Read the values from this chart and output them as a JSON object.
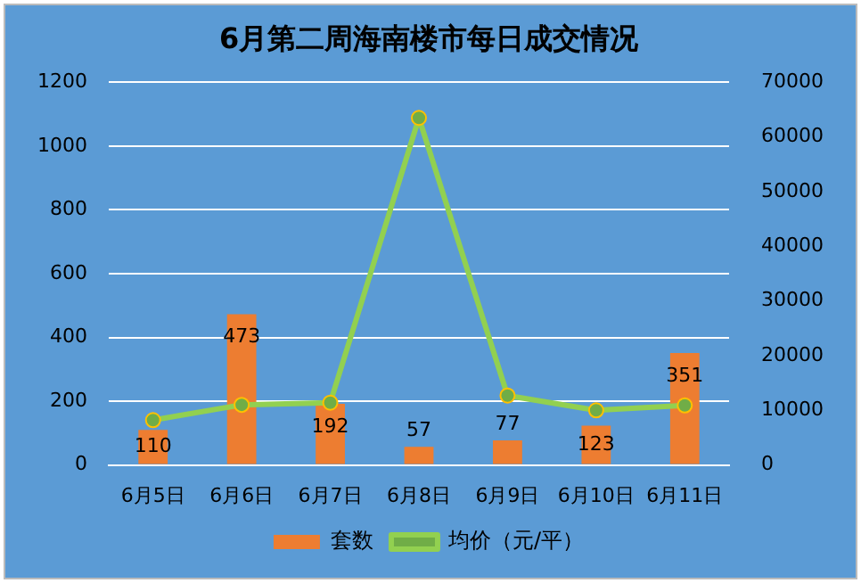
{
  "chart_data": {
    "type": "bar",
    "title": "6月第二周海南楼市每日成交情况",
    "categories": [
      "6月5日",
      "6月6日",
      "6月7日",
      "6月8日",
      "6月9日",
      "6月10日",
      "6月11日"
    ],
    "series": [
      {
        "name": "套数",
        "color": "#ed7d31",
        "values": [
          110,
          473,
          192,
          57,
          77,
          123,
          351
        ],
        "value_labels": [
          "110",
          "473",
          "192",
          "57",
          "77",
          "123",
          "351"
        ]
      },
      {
        "name": "均价（元/平）",
        "type": "line",
        "axis": "y2",
        "color": "#92d050",
        "values": [
          8200,
          11000,
          11400,
          63500,
          12700,
          10000,
          10900
        ]
      }
    ],
    "ylim": [
      0,
      1200
    ],
    "yticks": [
      0,
      200,
      400,
      600,
      800,
      1000,
      1200
    ],
    "y2lim": [
      0,
      70000
    ],
    "y2ticks": [
      0,
      10000,
      20000,
      30000,
      40000,
      50000,
      60000,
      70000
    ],
    "grid": "y",
    "legend": "bottom",
    "marker": "circle",
    "line_style": "solid"
  }
}
